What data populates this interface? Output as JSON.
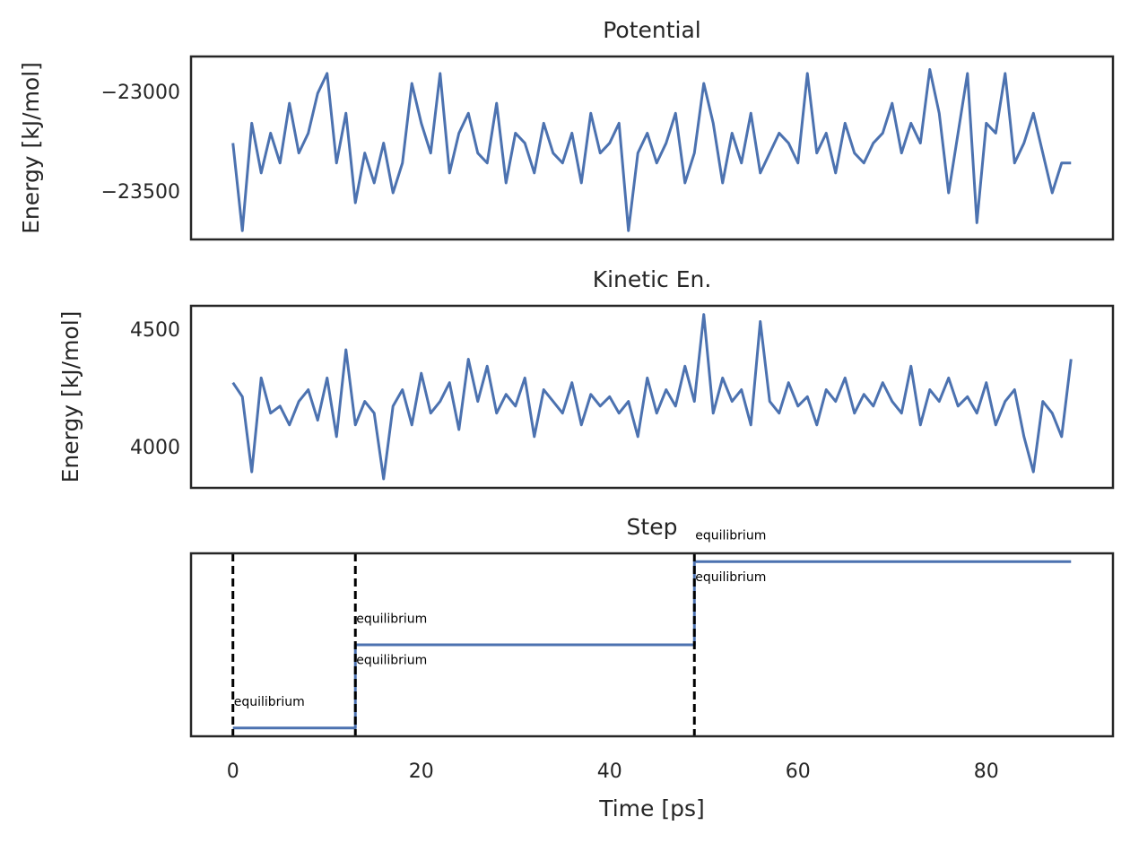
{
  "chart_data": [
    {
      "type": "line",
      "title": "Potential",
      "ylabel": "Energy [kJ/mol]",
      "x": [
        0,
        1,
        2,
        3,
        4,
        5,
        6,
        7,
        8,
        9,
        10,
        11,
        12,
        13,
        14,
        15,
        16,
        17,
        18,
        19,
        20,
        21,
        22,
        23,
        24,
        25,
        26,
        27,
        28,
        29,
        30,
        31,
        32,
        33,
        34,
        35,
        36,
        37,
        38,
        39,
        40,
        41,
        42,
        43,
        44,
        45,
        46,
        47,
        48,
        49,
        50,
        51,
        52,
        53,
        54,
        55,
        56,
        57,
        58,
        59,
        60,
        61,
        62,
        63,
        64,
        65,
        66,
        67,
        68,
        69,
        70,
        71,
        72,
        73,
        74,
        75,
        76,
        77,
        78,
        79,
        80,
        81,
        82,
        83,
        84,
        85,
        86,
        87,
        88,
        89
      ],
      "series": [
        {
          "color": "#4c72b0",
          "values": [
            -23250,
            -23690,
            -23150,
            -23400,
            -23200,
            -23350,
            -23050,
            -23300,
            -23200,
            -23000,
            -22900,
            -23350,
            -23100,
            -23550,
            -23300,
            -23450,
            -23250,
            -23500,
            -23350,
            -22950,
            -23150,
            -23300,
            -22900,
            -23400,
            -23200,
            -23100,
            -23300,
            -23350,
            -23050,
            -23450,
            -23200,
            -23250,
            -23400,
            -23150,
            -23300,
            -23350,
            -23200,
            -23450,
            -23100,
            -23300,
            -23250,
            -23150,
            -23690,
            -23300,
            -23200,
            -23350,
            -23250,
            -23100,
            -23450,
            -23300,
            -22950,
            -23150,
            -23450,
            -23200,
            -23350,
            -23100,
            -23400,
            -23300,
            -23200,
            -23250,
            -23350,
            -22900,
            -23300,
            -23200,
            -23400,
            -23150,
            -23300,
            -23350,
            -23250,
            -23200,
            -23050,
            -23300,
            -23150,
            -23250,
            -22880,
            -23100,
            -23500,
            -23200,
            -22900,
            -23650,
            -23150,
            -23200,
            -22900,
            -23350,
            -23250,
            -23100,
            -23300,
            -23500,
            -23350,
            -23350
          ]
        }
      ],
      "xlim": [
        -4.45,
        93.45
      ],
      "ylim": [
        -23734,
        -22815
      ],
      "yticks": [
        {
          "value": -23000,
          "label": "−23000"
        },
        {
          "value": -23500,
          "label": "−23500"
        }
      ]
    },
    {
      "type": "line",
      "title": "Kinetic En.",
      "ylabel": "Energy [kJ/mol]",
      "x": [
        0,
        1,
        2,
        3,
        4,
        5,
        6,
        7,
        8,
        9,
        10,
        11,
        12,
        13,
        14,
        15,
        16,
        17,
        18,
        19,
        20,
        21,
        22,
        23,
        24,
        25,
        26,
        27,
        28,
        29,
        30,
        31,
        32,
        33,
        34,
        35,
        36,
        37,
        38,
        39,
        40,
        41,
        42,
        43,
        44,
        45,
        46,
        47,
        48,
        49,
        50,
        51,
        52,
        53,
        54,
        55,
        56,
        57,
        58,
        59,
        60,
        61,
        62,
        63,
        64,
        65,
        66,
        67,
        68,
        69,
        70,
        71,
        72,
        73,
        74,
        75,
        76,
        77,
        78,
        79,
        80,
        81,
        82,
        83,
        84,
        85,
        86,
        87,
        88,
        89
      ],
      "series": [
        {
          "color": "#4c72b0",
          "values": [
            4280,
            4220,
            3900,
            4300,
            4150,
            4180,
            4100,
            4200,
            4250,
            4120,
            4300,
            4050,
            4420,
            4100,
            4200,
            4150,
            3870,
            4180,
            4250,
            4100,
            4320,
            4150,
            4200,
            4280,
            4080,
            4380,
            4200,
            4350,
            4150,
            4230,
            4180,
            4300,
            4050,
            4250,
            4200,
            4150,
            4280,
            4100,
            4230,
            4180,
            4220,
            4150,
            4200,
            4050,
            4300,
            4150,
            4250,
            4180,
            4350,
            4200,
            4570,
            4150,
            4300,
            4200,
            4250,
            4100,
            4540,
            4200,
            4150,
            4280,
            4180,
            4220,
            4100,
            4250,
            4200,
            4300,
            4150,
            4230,
            4180,
            4280,
            4200,
            4150,
            4350,
            4100,
            4250,
            4200,
            4300,
            4180,
            4220,
            4150,
            4280,
            4100,
            4200,
            4250,
            4050,
            3900,
            4200,
            4150,
            4050,
            4380
          ]
        }
      ],
      "xlim": [
        -4.45,
        93.45
      ],
      "ylim": [
        3832,
        4607
      ],
      "yticks": [
        4000,
        4500
      ]
    },
    {
      "type": "line",
      "title": "Step",
      "xlabel": "Time [ps]",
      "x": [
        0,
        13,
        13,
        49,
        49,
        89
      ],
      "series": [
        {
          "color": "#4c72b0",
          "values": [
            0,
            0,
            1,
            1,
            2,
            2
          ]
        }
      ],
      "vlines": [
        0,
        13,
        49
      ],
      "annotations": [
        {
          "text": "equilibrium",
          "x": 0,
          "y": 0.31
        },
        {
          "text": "equilibrium",
          "x": 13,
          "y": 1.31
        },
        {
          "text": "equilibrium",
          "x": 13,
          "y": 0.81
        },
        {
          "text": "equilibrium",
          "x": 49,
          "y": 2.31
        },
        {
          "text": "equilibrium",
          "x": 49,
          "y": 1.81
        }
      ],
      "xlim": [
        -4.45,
        93.45
      ],
      "ylim": [
        -0.1,
        2.1
      ],
      "xticks": [
        0,
        20,
        40,
        60,
        80
      ]
    }
  ]
}
